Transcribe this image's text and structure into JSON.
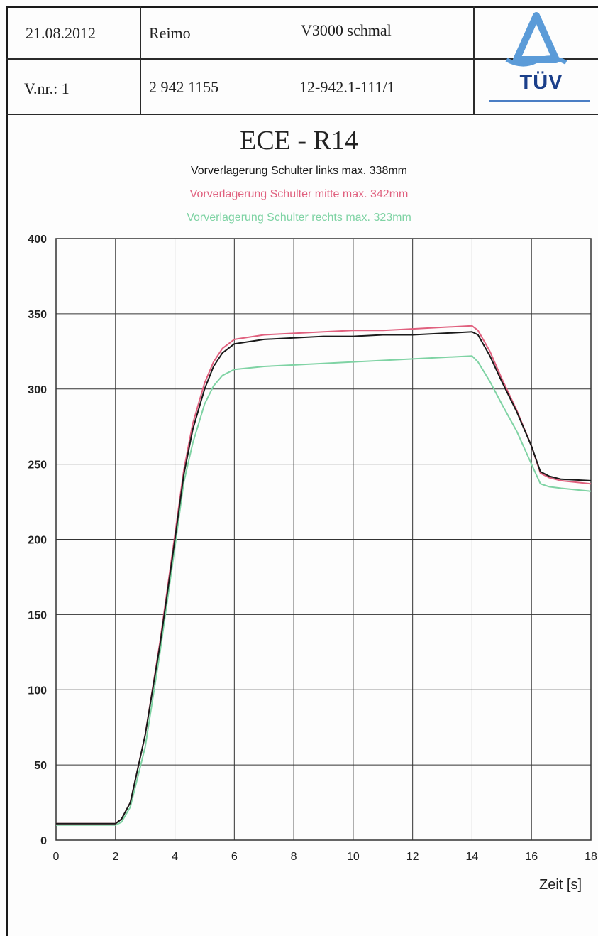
{
  "header": {
    "date": "21.08.2012",
    "manufacturer": "Reimo",
    "model": "V3000 schmal",
    "version": "V.nr.: 1",
    "number": "2 942 1155",
    "report": "12-942.1-111/1",
    "logo_text": "TÜV"
  },
  "colors": {
    "links": "#1a1a1a",
    "mitte": "#e0607e",
    "rechts": "#7fd3a4",
    "grid": "#333333",
    "logo_blue": "#1b3f8a",
    "logo_light": "#5b9bd8"
  },
  "chart_data": {
    "type": "line",
    "title": "ECE - R14",
    "legend": [
      {
        "text": "Vorverlagerung Schulter links max.  338mm",
        "color": "#1a1a1a"
      },
      {
        "text": "Vorverlagerung Schulter mitte max.  342mm",
        "color": "#e0607e"
      },
      {
        "text": "Vorverlagerung Schulter rechts max.  323mm",
        "color": "#7fd3a4"
      }
    ],
    "xlabel": "Zeit [s]",
    "ylabel": "",
    "xlim": [
      0,
      18
    ],
    "ylim": [
      0,
      400
    ],
    "xticks": [
      0,
      2,
      4,
      6,
      8,
      10,
      12,
      14,
      16,
      18
    ],
    "yticks": [
      0,
      50,
      100,
      150,
      200,
      250,
      300,
      350,
      400
    ],
    "grid": true,
    "series": [
      {
        "name": "Vorverlagerung Schulter links",
        "color": "#1a1a1a",
        "x": [
          0,
          2.0,
          2.2,
          2.5,
          3.0,
          3.5,
          4.0,
          4.3,
          4.6,
          5.0,
          5.3,
          5.6,
          6.0,
          7.0,
          8.0,
          9.0,
          10.0,
          11.0,
          12.0,
          13.0,
          14.0,
          14.2,
          14.6,
          15.0,
          15.5,
          16.0,
          16.3,
          16.6,
          17.0,
          18.0
        ],
        "y": [
          11,
          11,
          14,
          25,
          70,
          130,
          200,
          243,
          273,
          300,
          315,
          324,
          330,
          333,
          334,
          335,
          335,
          336,
          336,
          337,
          338,
          336,
          322,
          305,
          285,
          262,
          245,
          242,
          240,
          239
        ]
      },
      {
        "name": "Vorverlagerung Schulter mitte",
        "color": "#e0607e",
        "x": [
          0,
          2.0,
          2.2,
          2.5,
          3.0,
          3.5,
          4.0,
          4.3,
          4.6,
          5.0,
          5.3,
          5.6,
          6.0,
          7.0,
          8.0,
          9.0,
          10.0,
          11.0,
          12.0,
          13.0,
          14.0,
          14.2,
          14.6,
          15.0,
          15.5,
          16.0,
          16.3,
          16.6,
          17.0,
          18.0
        ],
        "y": [
          11,
          11,
          14,
          25,
          70,
          132,
          203,
          246,
          277,
          304,
          318,
          327,
          333,
          336,
          337,
          338,
          339,
          339,
          340,
          341,
          342,
          339,
          325,
          307,
          286,
          262,
          244,
          241,
          239,
          237
        ]
      },
      {
        "name": "Vorverlagerung Schulter rechts",
        "color": "#7fd3a4",
        "x": [
          0,
          2.0,
          2.2,
          2.5,
          3.0,
          3.5,
          4.0,
          4.3,
          4.6,
          5.0,
          5.3,
          5.6,
          6.0,
          7.0,
          8.0,
          9.0,
          10.0,
          11.0,
          12.0,
          13.0,
          14.0,
          14.2,
          14.6,
          15.0,
          15.5,
          16.0,
          16.3,
          16.6,
          17.0,
          18.0
        ],
        "y": [
          10,
          10,
          12,
          22,
          62,
          125,
          195,
          238,
          264,
          290,
          302,
          309,
          313,
          315,
          316,
          317,
          318,
          319,
          320,
          321,
          322,
          318,
          305,
          290,
          272,
          250,
          237,
          235,
          234,
          232
        ]
      }
    ]
  }
}
